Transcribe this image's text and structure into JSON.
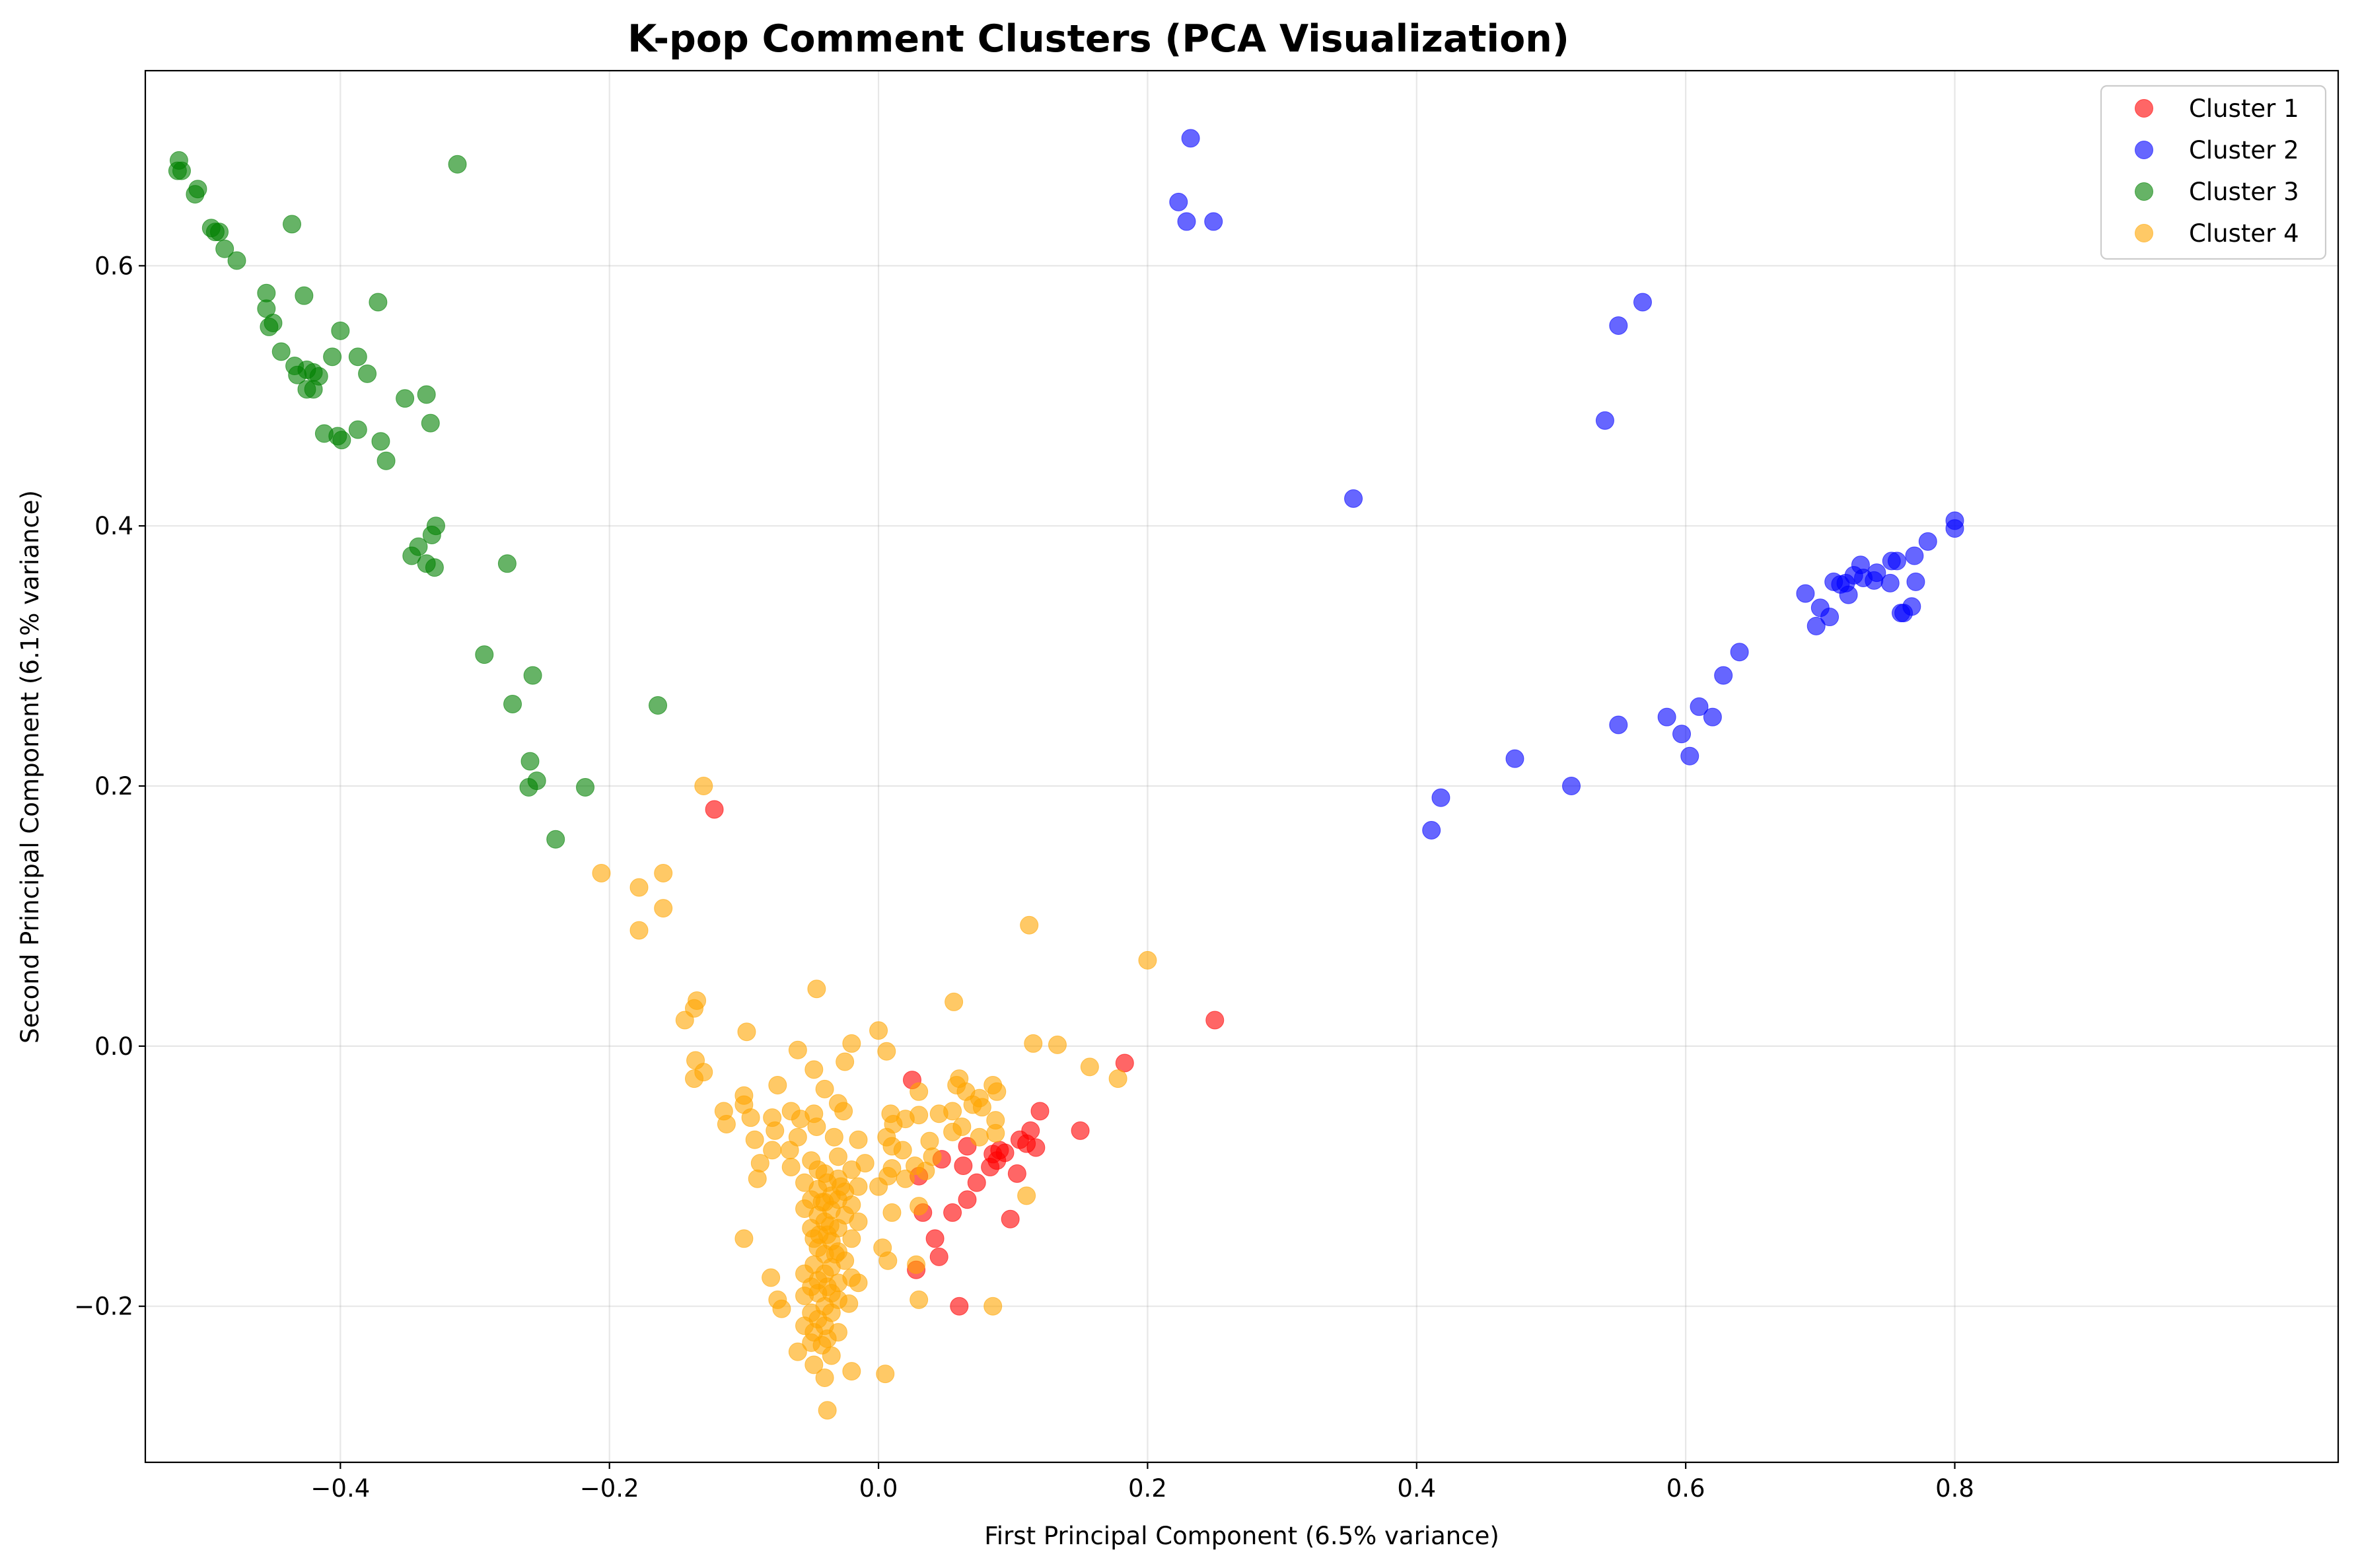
{
  "chart_data": {
    "type": "scatter",
    "title": "K-pop Comment Clusters (PCA Visualization)",
    "xlabel": "First Principal Component (6.5% variance)",
    "ylabel": "Second Principal Component (6.1% variance)",
    "xlim": [
      -0.545,
      1.085
    ],
    "ylim": [
      -0.32,
      0.75
    ],
    "x_ticks": [
      -0.4,
      -0.2,
      0.0,
      0.2,
      0.4,
      0.6,
      0.8
    ],
    "x_tick_labels": [
      "−0.4",
      "−0.2",
      "0.0",
      "0.2",
      "0.4",
      "0.6",
      "0.8"
    ],
    "y_ticks": [
      -0.2,
      0.0,
      0.2,
      0.4,
      0.6
    ],
    "y_tick_labels": [
      "−0.2",
      "0.0",
      "0.2",
      "0.4",
      "0.6"
    ],
    "grid": true,
    "legend_position": "top-right",
    "series": [
      {
        "name": "Cluster 1",
        "color": "#ff0000",
        "points": [
          [
            -0.122,
            0.182
          ],
          [
            0.25,
            0.02
          ],
          [
            0.183,
            -0.013
          ],
          [
            0.12,
            -0.05
          ],
          [
            0.15,
            -0.065
          ],
          [
            0.113,
            -0.065
          ],
          [
            0.105,
            -0.072
          ],
          [
            0.11,
            -0.075
          ],
          [
            0.117,
            -0.078
          ],
          [
            0.09,
            -0.08
          ],
          [
            0.094,
            -0.082
          ],
          [
            0.085,
            -0.083
          ],
          [
            0.066,
            -0.077
          ],
          [
            0.088,
            -0.088
          ],
          [
            0.047,
            -0.087
          ],
          [
            0.063,
            -0.092
          ],
          [
            0.083,
            -0.093
          ],
          [
            0.103,
            -0.098
          ],
          [
            0.073,
            -0.105
          ],
          [
            0.055,
            -0.128
          ],
          [
            0.033,
            -0.128
          ],
          [
            0.066,
            -0.118
          ],
          [
            0.098,
            -0.133
          ],
          [
            0.042,
            -0.148
          ],
          [
            0.045,
            -0.162
          ],
          [
            0.028,
            -0.172
          ],
          [
            0.06,
            -0.2
          ],
          [
            0.03,
            -0.1
          ],
          [
            0.025,
            -0.026
          ]
        ]
      },
      {
        "name": "Cluster 2",
        "color": "#0000ff",
        "points": [
          [
            0.232,
            0.698
          ],
          [
            0.223,
            0.649
          ],
          [
            0.229,
            0.634
          ],
          [
            0.249,
            0.634
          ],
          [
            0.568,
            0.572
          ],
          [
            0.55,
            0.554
          ],
          [
            0.54,
            0.481
          ],
          [
            0.353,
            0.421
          ],
          [
            0.8,
            0.404
          ],
          [
            0.8,
            0.398
          ],
          [
            0.78,
            0.388
          ],
          [
            0.77,
            0.377
          ],
          [
            0.753,
            0.373
          ],
          [
            0.757,
            0.373
          ],
          [
            0.73,
            0.37
          ],
          [
            0.725,
            0.362
          ],
          [
            0.742,
            0.364
          ],
          [
            0.732,
            0.36
          ],
          [
            0.74,
            0.358
          ],
          [
            0.71,
            0.357
          ],
          [
            0.715,
            0.355
          ],
          [
            0.719,
            0.356
          ],
          [
            0.752,
            0.356
          ],
          [
            0.771,
            0.357
          ],
          [
            0.721,
            0.347
          ],
          [
            0.689,
            0.348
          ],
          [
            0.7,
            0.337
          ],
          [
            0.707,
            0.33
          ],
          [
            0.697,
            0.323
          ],
          [
            0.768,
            0.338
          ],
          [
            0.76,
            0.333
          ],
          [
            0.762,
            0.333
          ],
          [
            0.64,
            0.303
          ],
          [
            0.628,
            0.285
          ],
          [
            0.61,
            0.261
          ],
          [
            0.586,
            0.253
          ],
          [
            0.62,
            0.253
          ],
          [
            0.55,
            0.247
          ],
          [
            0.597,
            0.24
          ],
          [
            0.603,
            0.223
          ],
          [
            0.473,
            0.221
          ],
          [
            0.515,
            0.2
          ],
          [
            0.418,
            0.191
          ],
          [
            0.411,
            0.166
          ]
        ]
      },
      {
        "name": "Cluster 3",
        "color": "#008000",
        "points": [
          [
            -0.52,
            0.681
          ],
          [
            -0.521,
            0.673
          ],
          [
            -0.518,
            0.673
          ],
          [
            -0.313,
            0.678
          ],
          [
            -0.506,
            0.659
          ],
          [
            -0.508,
            0.655
          ],
          [
            -0.496,
            0.629
          ],
          [
            -0.493,
            0.626
          ],
          [
            -0.49,
            0.626
          ],
          [
            -0.436,
            0.632
          ],
          [
            -0.486,
            0.613
          ],
          [
            -0.477,
            0.604
          ],
          [
            -0.455,
            0.579
          ],
          [
            -0.427,
            0.577
          ],
          [
            -0.372,
            0.572
          ],
          [
            -0.455,
            0.567
          ],
          [
            -0.45,
            0.556
          ],
          [
            -0.453,
            0.553
          ],
          [
            -0.4,
            0.55
          ],
          [
            -0.444,
            0.534
          ],
          [
            -0.387,
            0.53
          ],
          [
            -0.406,
            0.53
          ],
          [
            -0.434,
            0.523
          ],
          [
            -0.42,
            0.518
          ],
          [
            -0.425,
            0.52
          ],
          [
            -0.38,
            0.517
          ],
          [
            -0.432,
            0.516
          ],
          [
            -0.416,
            0.515
          ],
          [
            -0.425,
            0.505
          ],
          [
            -0.42,
            0.505
          ],
          [
            -0.336,
            0.501
          ],
          [
            -0.352,
            0.498
          ],
          [
            -0.333,
            0.479
          ],
          [
            -0.387,
            0.474
          ],
          [
            -0.412,
            0.471
          ],
          [
            -0.402,
            0.469
          ],
          [
            -0.399,
            0.466
          ],
          [
            -0.37,
            0.465
          ],
          [
            -0.366,
            0.45
          ],
          [
            -0.329,
            0.4
          ],
          [
            -0.332,
            0.393
          ],
          [
            -0.342,
            0.384
          ],
          [
            -0.347,
            0.377
          ],
          [
            -0.336,
            0.371
          ],
          [
            -0.33,
            0.368
          ],
          [
            -0.276,
            0.371
          ],
          [
            -0.293,
            0.301
          ],
          [
            -0.257,
            0.285
          ],
          [
            -0.272,
            0.263
          ],
          [
            -0.164,
            0.262
          ],
          [
            -0.259,
            0.219
          ],
          [
            -0.254,
            0.204
          ],
          [
            -0.26,
            0.199
          ],
          [
            -0.218,
            0.199
          ],
          [
            -0.24,
            0.159
          ]
        ]
      },
      {
        "name": "Cluster 4",
        "color": "#ffa500",
        "points": [
          [
            -0.13,
            0.2
          ],
          [
            -0.206,
            0.133
          ],
          [
            -0.16,
            0.133
          ],
          [
            -0.178,
            0.122
          ],
          [
            -0.16,
            0.106
          ],
          [
            0.112,
            0.093
          ],
          [
            -0.178,
            0.089
          ],
          [
            0.2,
            0.066
          ],
          [
            -0.046,
            0.044
          ],
          [
            0.056,
            0.034
          ],
          [
            -0.135,
            0.035
          ],
          [
            -0.137,
            0.029
          ],
          [
            -0.144,
            0.02
          ],
          [
            0.0,
            0.012
          ],
          [
            -0.098,
            0.011
          ],
          [
            -0.02,
            0.002
          ],
          [
            0.115,
            0.002
          ],
          [
            0.133,
            0.001
          ],
          [
            -0.06,
            -0.003
          ],
          [
            0.006,
            -0.004
          ],
          [
            -0.136,
            -0.011
          ],
          [
            -0.025,
            -0.012
          ],
          [
            0.157,
            -0.016
          ],
          [
            -0.048,
            -0.018
          ],
          [
            0.178,
            -0.025
          ],
          [
            -0.137,
            -0.025
          ],
          [
            0.06,
            -0.025
          ],
          [
            0.058,
            -0.03
          ],
          [
            0.085,
            -0.03
          ],
          [
            -0.075,
            -0.03
          ],
          [
            -0.04,
            -0.033
          ],
          [
            0.03,
            -0.035
          ],
          [
            0.065,
            -0.035
          ],
          [
            -0.1,
            -0.038
          ],
          [
            0.088,
            -0.035
          ],
          [
            0.075,
            -0.04
          ],
          [
            -0.13,
            -0.02
          ],
          [
            -0.1,
            -0.045
          ],
          [
            -0.03,
            -0.044
          ],
          [
            0.07,
            -0.045
          ],
          [
            0.077,
            -0.047
          ],
          [
            -0.115,
            -0.05
          ],
          [
            -0.065,
            -0.05
          ],
          [
            -0.026,
            -0.05
          ],
          [
            0.055,
            -0.05
          ],
          [
            0.045,
            -0.052
          ],
          [
            -0.048,
            -0.052
          ],
          [
            0.03,
            -0.053
          ],
          [
            0.009,
            -0.052
          ],
          [
            -0.095,
            -0.055
          ],
          [
            -0.079,
            -0.055
          ],
          [
            -0.058,
            -0.056
          ],
          [
            0.02,
            -0.056
          ],
          [
            0.087,
            -0.057
          ],
          [
            -0.113,
            -0.06
          ],
          [
            -0.046,
            -0.062
          ],
          [
            0.011,
            -0.06
          ],
          [
            0.062,
            -0.062
          ],
          [
            -0.077,
            -0.065
          ],
          [
            -0.06,
            -0.07
          ],
          [
            0.055,
            -0.066
          ],
          [
            0.087,
            -0.067
          ],
          [
            -0.033,
            -0.07
          ],
          [
            0.006,
            -0.07
          ],
          [
            0.075,
            -0.07
          ],
          [
            -0.092,
            -0.072
          ],
          [
            -0.015,
            -0.072
          ],
          [
            0.038,
            -0.073
          ],
          [
            -0.079,
            -0.08
          ],
          [
            0.01,
            -0.077
          ],
          [
            -0.066,
            -0.08
          ],
          [
            0.018,
            -0.08
          ],
          [
            -0.03,
            -0.085
          ],
          [
            0.04,
            -0.085
          ],
          [
            -0.05,
            -0.088
          ],
          [
            -0.088,
            -0.09
          ],
          [
            -0.01,
            -0.09
          ],
          [
            0.027,
            -0.092
          ],
          [
            -0.065,
            -0.093
          ],
          [
            0.01,
            -0.094
          ],
          [
            -0.045,
            -0.095
          ],
          [
            -0.02,
            -0.095
          ],
          [
            0.035,
            -0.096
          ],
          [
            -0.04,
            -0.098
          ],
          [
            0.007,
            -0.1
          ],
          [
            -0.09,
            -0.102
          ],
          [
            -0.03,
            -0.102
          ],
          [
            0.02,
            -0.102
          ],
          [
            -0.055,
            -0.105
          ],
          [
            -0.038,
            -0.105
          ],
          [
            -0.015,
            -0.108
          ],
          [
            0.0,
            -0.108
          ],
          [
            -0.045,
            -0.11
          ],
          [
            -0.025,
            -0.112
          ],
          [
            -0.035,
            -0.115
          ],
          [
            0.11,
            -0.115
          ],
          [
            -0.05,
            -0.118
          ],
          [
            -0.03,
            -0.118
          ],
          [
            -0.04,
            -0.12
          ],
          [
            -0.02,
            -0.122
          ],
          [
            0.03,
            -0.123
          ],
          [
            -0.055,
            -0.125
          ],
          [
            -0.035,
            -0.126
          ],
          [
            0.01,
            -0.128
          ],
          [
            -0.045,
            -0.13
          ],
          [
            -0.025,
            -0.13
          ],
          [
            -0.04,
            -0.135
          ],
          [
            -0.015,
            -0.135
          ],
          [
            -0.05,
            -0.14
          ],
          [
            -0.03,
            -0.14
          ],
          [
            -0.038,
            -0.145
          ],
          [
            -0.048,
            -0.148
          ],
          [
            -0.1,
            -0.148
          ],
          [
            -0.02,
            -0.148
          ],
          [
            -0.035,
            -0.15
          ],
          [
            -0.045,
            -0.155
          ],
          [
            0.003,
            -0.155
          ],
          [
            -0.03,
            -0.158
          ],
          [
            -0.04,
            -0.16
          ],
          [
            0.007,
            -0.165
          ],
          [
            -0.025,
            -0.165
          ],
          [
            -0.048,
            -0.168
          ],
          [
            0.028,
            -0.168
          ],
          [
            -0.035,
            -0.17
          ],
          [
            -0.055,
            -0.175
          ],
          [
            -0.04,
            -0.175
          ],
          [
            -0.08,
            -0.178
          ],
          [
            -0.02,
            -0.178
          ],
          [
            -0.045,
            -0.18
          ],
          [
            -0.03,
            -0.182
          ],
          [
            -0.05,
            -0.185
          ],
          [
            -0.038,
            -0.185
          ],
          [
            -0.015,
            -0.182
          ],
          [
            -0.045,
            -0.19
          ],
          [
            -0.035,
            -0.19
          ],
          [
            -0.055,
            -0.192
          ],
          [
            -0.03,
            -0.195
          ],
          [
            -0.075,
            -0.195
          ],
          [
            0.03,
            -0.195
          ],
          [
            -0.04,
            -0.2
          ],
          [
            -0.072,
            -0.202
          ],
          [
            -0.022,
            -0.198
          ],
          [
            -0.05,
            -0.205
          ],
          [
            -0.035,
            -0.205
          ],
          [
            0.085,
            -0.2
          ],
          [
            -0.045,
            -0.21
          ],
          [
            -0.055,
            -0.215
          ],
          [
            -0.04,
            -0.215
          ],
          [
            -0.048,
            -0.22
          ],
          [
            -0.03,
            -0.22
          ],
          [
            -0.038,
            -0.225
          ],
          [
            -0.05,
            -0.228
          ],
          [
            -0.042,
            -0.23
          ],
          [
            -0.06,
            -0.235
          ],
          [
            -0.035,
            -0.238
          ],
          [
            -0.048,
            -0.245
          ],
          [
            -0.02,
            -0.25
          ],
          [
            -0.04,
            -0.255
          ],
          [
            0.005,
            -0.252
          ],
          [
            -0.038,
            -0.28
          ],
          [
            -0.042,
            -0.12
          ],
          [
            -0.028,
            -0.108
          ],
          [
            -0.044,
            -0.145
          ],
          [
            -0.032,
            -0.16
          ],
          [
            -0.036,
            -0.138
          ]
        ]
      }
    ]
  }
}
